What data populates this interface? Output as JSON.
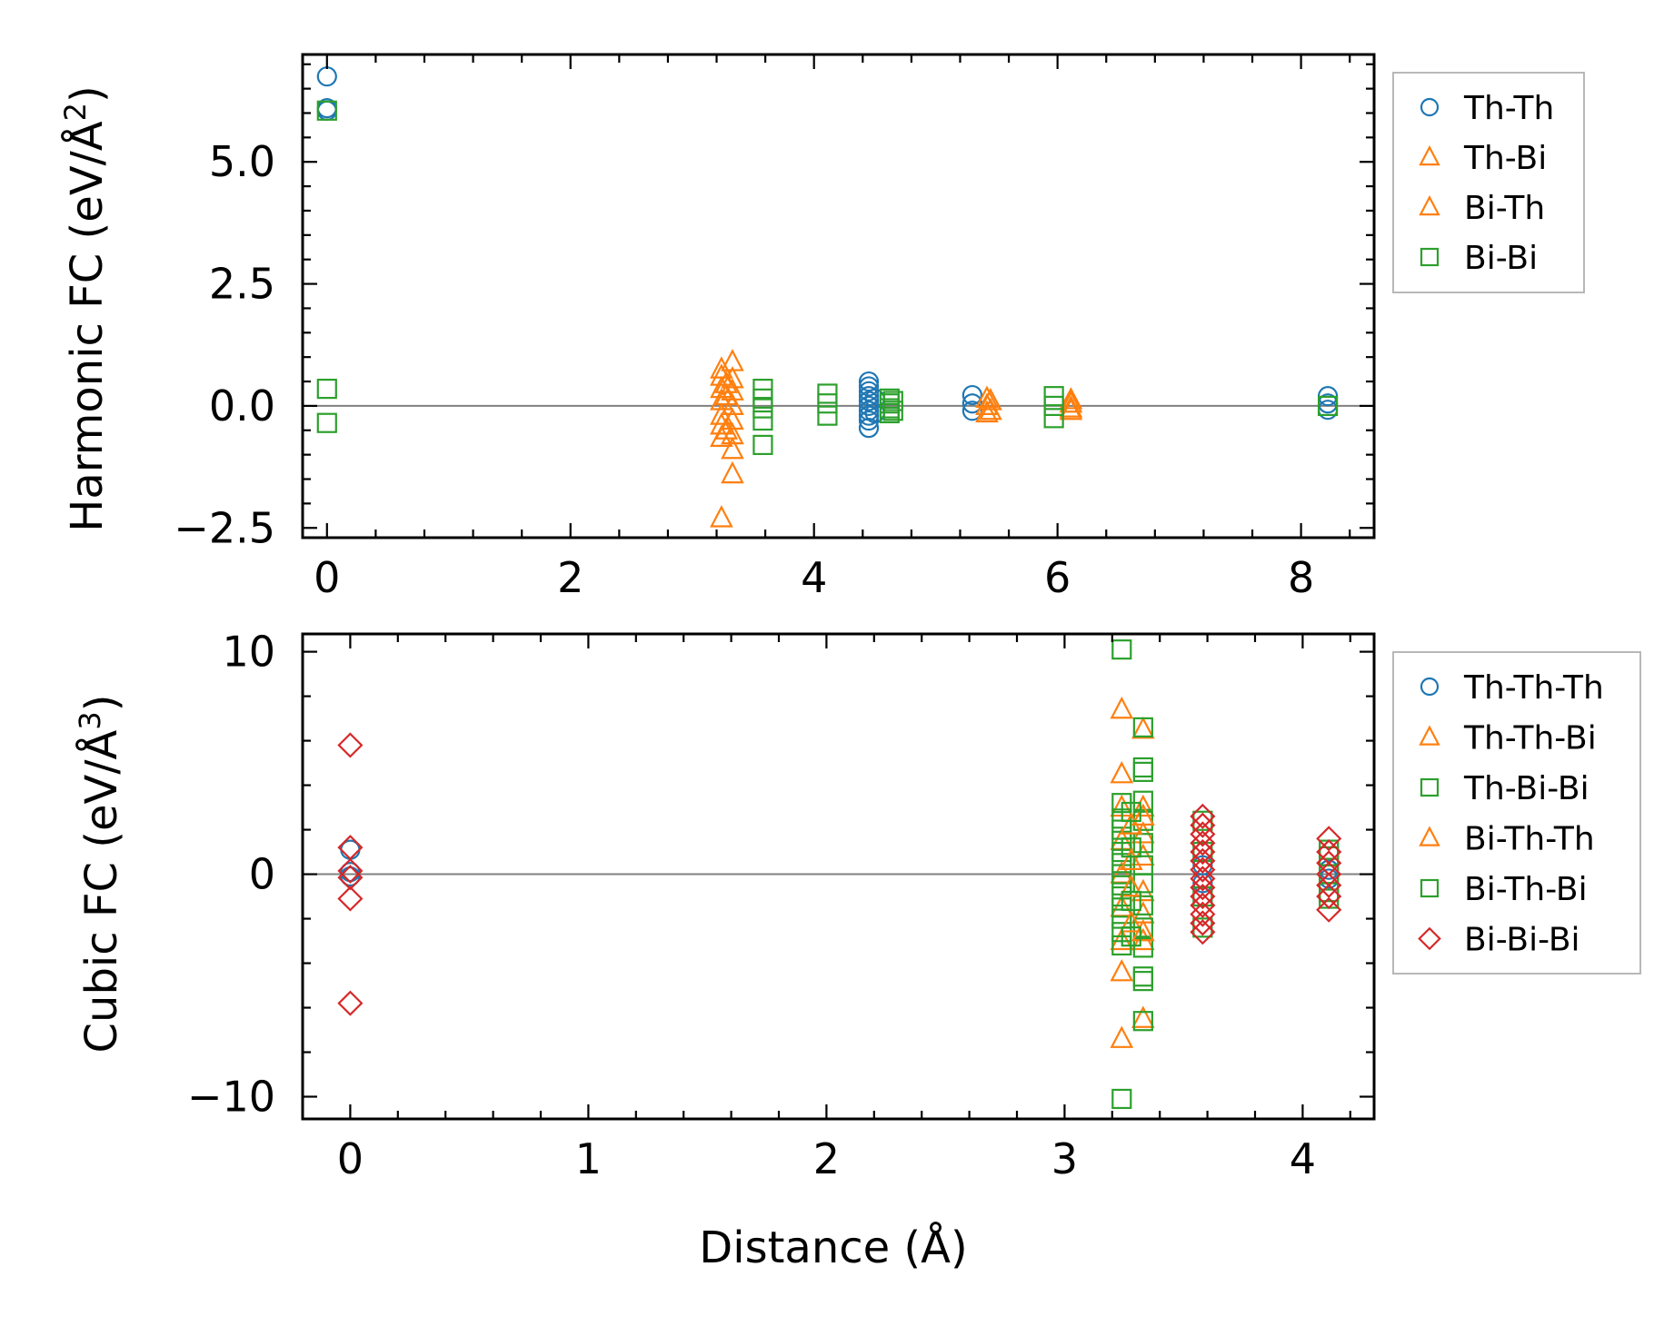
{
  "chart_data": [
    {
      "type": "scatter",
      "panel": "top",
      "title": "",
      "ylabel": "Harmonic FC (eV/Å²)",
      "ylabel_main": "Harmonic FC (eV/Å",
      "ylabel_sup": "2",
      "ylabel_tail": ")",
      "xlabel": "",
      "xlim": [
        -0.2,
        8.6
      ],
      "ylim": [
        -2.7,
        7.2
      ],
      "xticks": [
        0,
        2,
        4,
        6,
        8
      ],
      "xtick_labels": [
        "0",
        "2",
        "4",
        "6",
        "8"
      ],
      "yticks": [
        -2.5,
        0.0,
        2.5,
        5.0
      ],
      "ytick_labels": [
        "−2.5",
        "0.0",
        "2.5",
        "5.0"
      ],
      "legend_placement": "outside-right-top",
      "series": [
        {
          "name": "Th-Th",
          "marker": "circle",
          "color": "#1f77b4",
          "points": [
            [
              0,
              6.75
            ],
            [
              0,
              6.05
            ],
            [
              0,
              6.1
            ],
            [
              4.45,
              0.5
            ],
            [
              4.45,
              0.4
            ],
            [
              4.45,
              0.3
            ],
            [
              4.45,
              0.2
            ],
            [
              4.45,
              0.1
            ],
            [
              4.45,
              0.0
            ],
            [
              4.45,
              -0.1
            ],
            [
              4.45,
              -0.2
            ],
            [
              4.45,
              -0.3
            ],
            [
              4.45,
              -0.45
            ],
            [
              4.5,
              0.15
            ],
            [
              4.5,
              -0.15
            ],
            [
              5.3,
              0.22
            ],
            [
              5.3,
              0.05
            ],
            [
              5.3,
              -0.1
            ],
            [
              8.22,
              0.2
            ],
            [
              8.22,
              0.05
            ],
            [
              8.22,
              -0.08
            ]
          ]
        },
        {
          "name": "Th-Bi",
          "marker": "triangle",
          "color": "#ff7f0e",
          "points": [
            [
              3.24,
              -2.3
            ],
            [
              3.24,
              -0.65
            ],
            [
              3.24,
              -0.4
            ],
            [
              3.24,
              -0.2
            ],
            [
              3.24,
              0.1
            ],
            [
              3.24,
              0.35
            ],
            [
              3.24,
              0.6
            ],
            [
              3.24,
              0.75
            ],
            [
              3.33,
              -1.4
            ],
            [
              3.33,
              -0.9
            ],
            [
              3.33,
              -0.6
            ],
            [
              3.33,
              -0.3
            ],
            [
              3.33,
              0.0
            ],
            [
              3.33,
              0.3
            ],
            [
              3.33,
              0.55
            ],
            [
              3.33,
              0.9
            ],
            [
              5.42,
              -0.15
            ],
            [
              5.42,
              0.0
            ],
            [
              5.42,
              0.15
            ],
            [
              6.11,
              -0.1
            ],
            [
              6.11,
              0.05
            ]
          ]
        },
        {
          "name": "Bi-Th",
          "marker": "triangle",
          "color": "#ff7f0e",
          "points": [
            [
              3.28,
              -0.5
            ],
            [
              3.28,
              0.2
            ],
            [
              3.28,
              0.45
            ],
            [
              5.45,
              -0.1
            ],
            [
              5.45,
              0.1
            ],
            [
              6.11,
              -0.05
            ],
            [
              6.11,
              0.12
            ]
          ]
        },
        {
          "name": "Bi-Bi",
          "marker": "square",
          "color": "#2ca02c",
          "points": [
            [
              0,
              6.05
            ],
            [
              0,
              0.35
            ],
            [
              0,
              -0.35
            ],
            [
              3.58,
              0.35
            ],
            [
              3.58,
              0.15
            ],
            [
              3.58,
              -0.05
            ],
            [
              3.58,
              -0.3
            ],
            [
              3.58,
              -0.8
            ],
            [
              4.11,
              0.25
            ],
            [
              4.11,
              0.05
            ],
            [
              4.11,
              -0.2
            ],
            [
              4.62,
              0.15
            ],
            [
              4.62,
              0.05
            ],
            [
              4.62,
              -0.05
            ],
            [
              4.62,
              -0.15
            ],
            [
              4.65,
              0.1
            ],
            [
              4.65,
              -0.1
            ],
            [
              5.97,
              0.2
            ],
            [
              5.97,
              0.0
            ],
            [
              5.97,
              -0.25
            ],
            [
              8.22,
              0.0
            ]
          ]
        }
      ]
    },
    {
      "type": "scatter",
      "panel": "bottom",
      "title": "",
      "ylabel": "Cubic FC (eV/Å³)",
      "ylabel_main": "Cubic FC (eV/Å",
      "ylabel_sup": "3",
      "ylabel_tail": ")",
      "xlabel": "Distance (Å)",
      "xlim": [
        -0.2,
        4.3
      ],
      "ylim": [
        -11,
        10.8
      ],
      "xticks": [
        0,
        1,
        2,
        3,
        4
      ],
      "xtick_labels": [
        "0",
        "1",
        "2",
        "3",
        "4"
      ],
      "yticks": [
        -10,
        0,
        10
      ],
      "ytick_labels": [
        "−10",
        "0",
        "10"
      ],
      "legend_placement": "outside-right-top",
      "series": [
        {
          "name": "Th-Th-Th",
          "marker": "circle",
          "color": "#1f77b4",
          "points": [
            [
              0,
              1.1
            ],
            [
              0,
              0.1
            ],
            [
              0,
              -0.1
            ],
            [
              3.58,
              0.4
            ],
            [
              3.58,
              -0.4
            ],
            [
              4.11,
              0.2
            ],
            [
              4.11,
              -0.2
            ]
          ]
        },
        {
          "name": "Th-Th-Bi",
          "marker": "triangle",
          "color": "#ff7f0e",
          "points": [
            [
              3.24,
              7.4
            ],
            [
              3.24,
              4.5
            ],
            [
              3.24,
              3.0
            ],
            [
              3.24,
              1.5
            ],
            [
              3.24,
              0.0
            ],
            [
              3.24,
              -1.5
            ],
            [
              3.24,
              -3.0
            ],
            [
              3.24,
              -4.4
            ],
            [
              3.24,
              -7.4
            ],
            [
              3.33,
              6.5
            ],
            [
              3.33,
              3.0
            ],
            [
              3.33,
              1.8
            ],
            [
              3.33,
              0.8
            ],
            [
              3.33,
              -0.8
            ],
            [
              3.33,
              -1.8
            ],
            [
              3.33,
              -3.0
            ],
            [
              3.33,
              -6.5
            ]
          ]
        },
        {
          "name": "Th-Bi-Bi",
          "marker": "square",
          "color": "#2ca02c",
          "points": [
            [
              3.24,
              10.1
            ],
            [
              3.24,
              3.2
            ],
            [
              3.24,
              2.5
            ],
            [
              3.24,
              2.0
            ],
            [
              3.24,
              1.5
            ],
            [
              3.24,
              1.0
            ],
            [
              3.24,
              0.5
            ],
            [
              3.24,
              0.0
            ],
            [
              3.24,
              -0.5
            ],
            [
              3.24,
              -1.0
            ],
            [
              3.24,
              -1.5
            ],
            [
              3.24,
              -2.0
            ],
            [
              3.24,
              -2.6
            ],
            [
              3.24,
              -3.2
            ],
            [
              3.24,
              -10.1
            ],
            [
              3.33,
              6.6
            ],
            [
              3.33,
              4.8
            ],
            [
              3.33,
              4.6
            ],
            [
              3.33,
              3.3
            ],
            [
              3.33,
              2.4
            ],
            [
              3.33,
              1.4
            ],
            [
              3.33,
              0.4
            ],
            [
              3.33,
              -0.4
            ],
            [
              3.33,
              -1.4
            ],
            [
              3.33,
              -2.4
            ],
            [
              3.33,
              -3.3
            ],
            [
              3.33,
              -4.6
            ],
            [
              3.33,
              -4.8
            ],
            [
              3.33,
              -6.6
            ],
            [
              4.11,
              0.8
            ],
            [
              4.11,
              -0.8
            ]
          ]
        },
        {
          "name": "Bi-Th-Th",
          "marker": "triangle",
          "color": "#ff7f0e",
          "points": [
            [
              3.28,
              2.2
            ],
            [
              3.28,
              0.6
            ],
            [
              3.28,
              -0.6
            ],
            [
              3.28,
              -2.2
            ],
            [
              3.33,
              2.6
            ],
            [
              3.33,
              -2.6
            ]
          ]
        },
        {
          "name": "Bi-Th-Bi",
          "marker": "square",
          "color": "#2ca02c",
          "points": [
            [
              3.28,
              2.8
            ],
            [
              3.28,
              1.2
            ],
            [
              3.28,
              -1.2
            ],
            [
              3.28,
              -2.8
            ],
            [
              3.58,
              2.4
            ],
            [
              3.58,
              1.0
            ],
            [
              3.58,
              -1.0
            ],
            [
              3.58,
              -2.4
            ],
            [
              4.11,
              1.1
            ],
            [
              4.11,
              0.0
            ],
            [
              4.11,
              -1.1
            ]
          ]
        },
        {
          "name": "Bi-Bi-Bi",
          "marker": "diamond",
          "color": "#d62728",
          "points": [
            [
              0,
              5.8
            ],
            [
              0,
              1.2
            ],
            [
              0,
              0.15
            ],
            [
              0,
              -0.15
            ],
            [
              0,
              -1.1
            ],
            [
              0,
              -5.8
            ],
            [
              3.58,
              2.6
            ],
            [
              3.58,
              2.2
            ],
            [
              3.58,
              1.8
            ],
            [
              3.58,
              1.4
            ],
            [
              3.58,
              1.0
            ],
            [
              3.58,
              0.6
            ],
            [
              3.58,
              0.2
            ],
            [
              3.58,
              -0.2
            ],
            [
              3.58,
              -0.6
            ],
            [
              3.58,
              -1.0
            ],
            [
              3.58,
              -1.4
            ],
            [
              3.58,
              -1.8
            ],
            [
              3.58,
              -2.2
            ],
            [
              3.58,
              -2.6
            ],
            [
              4.11,
              1.6
            ],
            [
              4.11,
              1.0
            ],
            [
              4.11,
              0.5
            ],
            [
              4.11,
              0.0
            ],
            [
              4.11,
              -0.5
            ],
            [
              4.11,
              -1.0
            ],
            [
              4.11,
              -1.6
            ]
          ]
        }
      ]
    }
  ]
}
